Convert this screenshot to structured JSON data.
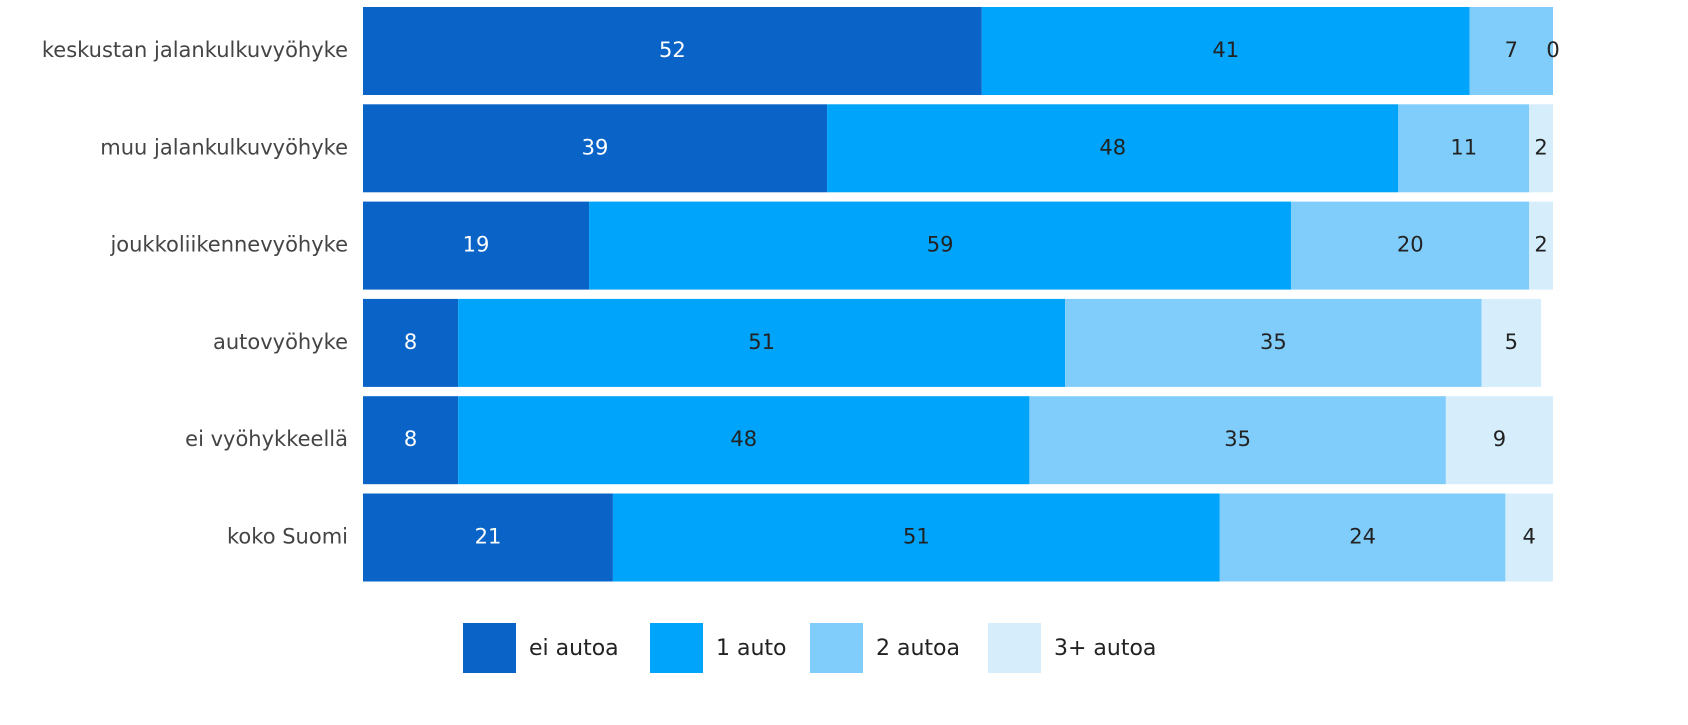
{
  "chart_data": {
    "type": "stacked_bar_horizontal",
    "categories": [
      "keskustan jalankulkuvyöhyke",
      "muu jalankulkuvyöhyke",
      "joukkoliikennevyöhyke",
      "autovyöhyke",
      "ei vyöhykkeellä",
      "koko Suomi"
    ],
    "series": [
      {
        "name": "ei autoa",
        "color": "#0a64c8",
        "values": [
          52,
          39,
          19,
          8,
          8,
          21
        ]
      },
      {
        "name": "1 auto",
        "color": "#00a4fb",
        "values": [
          41,
          48,
          59,
          51,
          48,
          51
        ]
      },
      {
        "name": "2 autoa",
        "color": "#80cdfb",
        "values": [
          7,
          11,
          20,
          35,
          35,
          24
        ]
      },
      {
        "name": "3+ autoa",
        "color": "#d6edfc",
        "values": [
          0,
          2,
          2,
          5,
          9,
          4
        ]
      }
    ],
    "xlim": [
      0,
      100
    ],
    "legend": "bottom"
  }
}
